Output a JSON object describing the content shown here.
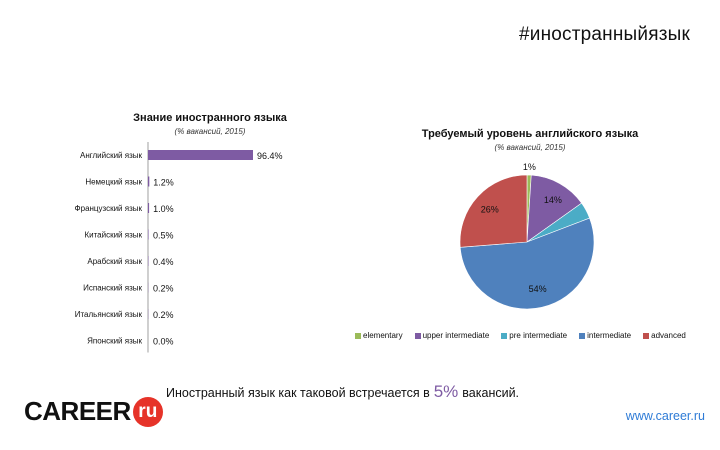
{
  "header": {
    "hashtag": "#иностранныйязык"
  },
  "chart_data": [
    {
      "type": "bar",
      "title": "Знание иностранного языка",
      "subtitle": "(% вакансий, 2015)",
      "categories": [
        "Английский язык",
        "Немецкий язык",
        "Французский язык",
        "Китайский язык",
        "Арабский язык",
        "Испанский язык",
        "Итальянский язык",
        "Японский язык"
      ],
      "values": [
        96.4,
        1.2,
        1.0,
        0.5,
        0.4,
        0.2,
        0.2,
        0.0
      ],
      "value_labels": [
        "96.4%",
        "1.2%",
        "1.0%",
        "0.5%",
        "0.4%",
        "0.2%",
        "0.2%",
        "0.0%"
      ],
      "color": "#7e5ba3"
    },
    {
      "type": "pie",
      "title": "Требуемый уровень английского языка",
      "subtitle": "(% вакансий, 2015)",
      "categories": [
        "elementary",
        "upper intermediate",
        "pre intermediate",
        "intermediate",
        "advanced"
      ],
      "values": [
        1,
        14,
        4,
        54,
        26
      ],
      "value_labels": [
        "1%",
        "14%",
        "4%",
        "54%",
        "26%"
      ],
      "colors": [
        "#9bbb59",
        "#7e5ba3",
        "#4bacc6",
        "#4f81bd",
        "#c0504d"
      ],
      "legend_position": "bottom"
    }
  ],
  "footer": {
    "text_before": "Иностранный язык как таковой встречается в",
    "number": "5%",
    "text_after": "вакансий.",
    "site": "www.career.ru"
  },
  "logo": {
    "text": "CAREER",
    "badge": "ru"
  }
}
